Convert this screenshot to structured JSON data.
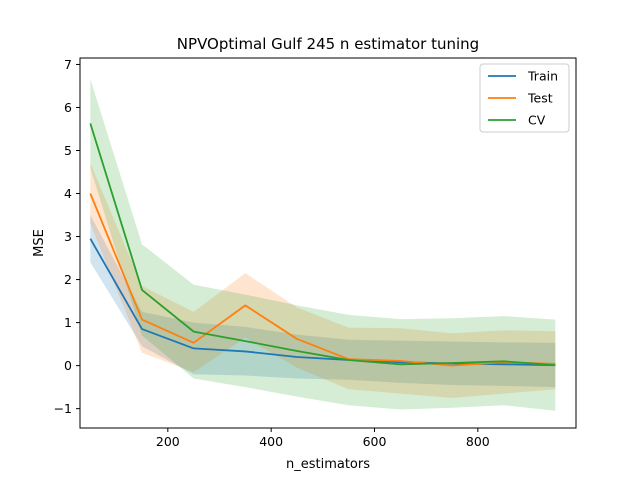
{
  "chart_data": {
    "type": "line",
    "title": "NPVOptimal Gulf 245 n estimator tuning",
    "xlabel": "n_estimators",
    "ylabel": "MSE",
    "xlim": [
      30,
      990
    ],
    "ylim": [
      -1.45,
      7.15
    ],
    "xticks": [
      200,
      400,
      600,
      800
    ],
    "yticks": [
      -1,
      0,
      1,
      2,
      3,
      4,
      5,
      6,
      7
    ],
    "ytick_labels": [
      "−1",
      "0",
      "1",
      "2",
      "3",
      "4",
      "5",
      "6",
      "7"
    ],
    "grid": false,
    "legend_position": "top-right",
    "x": [
      50,
      150,
      250,
      350,
      450,
      550,
      650,
      750,
      850,
      950
    ],
    "series": [
      {
        "name": "Train",
        "color": "#1f77b4",
        "values": [
          2.95,
          0.85,
          0.4,
          0.33,
          0.2,
          0.13,
          0.08,
          0.05,
          0.03,
          0.01
        ],
        "band_lower": [
          2.4,
          0.45,
          -0.2,
          -0.23,
          -0.3,
          -0.33,
          -0.4,
          -0.45,
          -0.47,
          -0.5
        ],
        "band_upper": [
          3.5,
          1.25,
          1.0,
          0.9,
          0.72,
          0.6,
          0.58,
          0.56,
          0.54,
          0.53
        ]
      },
      {
        "name": "Test",
        "color": "#ff7f0e",
        "values": [
          4.0,
          1.07,
          0.53,
          1.4,
          0.62,
          0.15,
          0.11,
          0.0,
          0.08,
          0.04
        ],
        "band_lower": [
          3.3,
          0.3,
          -0.15,
          0.65,
          -0.05,
          -0.55,
          -0.65,
          -0.75,
          -0.65,
          -0.55
        ],
        "band_upper": [
          4.7,
          1.85,
          1.25,
          2.15,
          1.35,
          0.88,
          0.87,
          0.75,
          0.82,
          0.8
        ]
      },
      {
        "name": "CV",
        "color": "#2ca02c",
        "values": [
          5.63,
          1.76,
          0.79,
          0.57,
          0.34,
          0.13,
          0.03,
          0.06,
          0.1,
          0.01
        ],
        "band_lower": [
          4.6,
          0.7,
          -0.3,
          -0.5,
          -0.72,
          -0.92,
          -1.02,
          -0.98,
          -0.92,
          -1.05
        ],
        "band_upper": [
          6.66,
          2.82,
          1.88,
          1.65,
          1.4,
          1.18,
          1.08,
          1.1,
          1.15,
          1.07
        ]
      }
    ]
  }
}
